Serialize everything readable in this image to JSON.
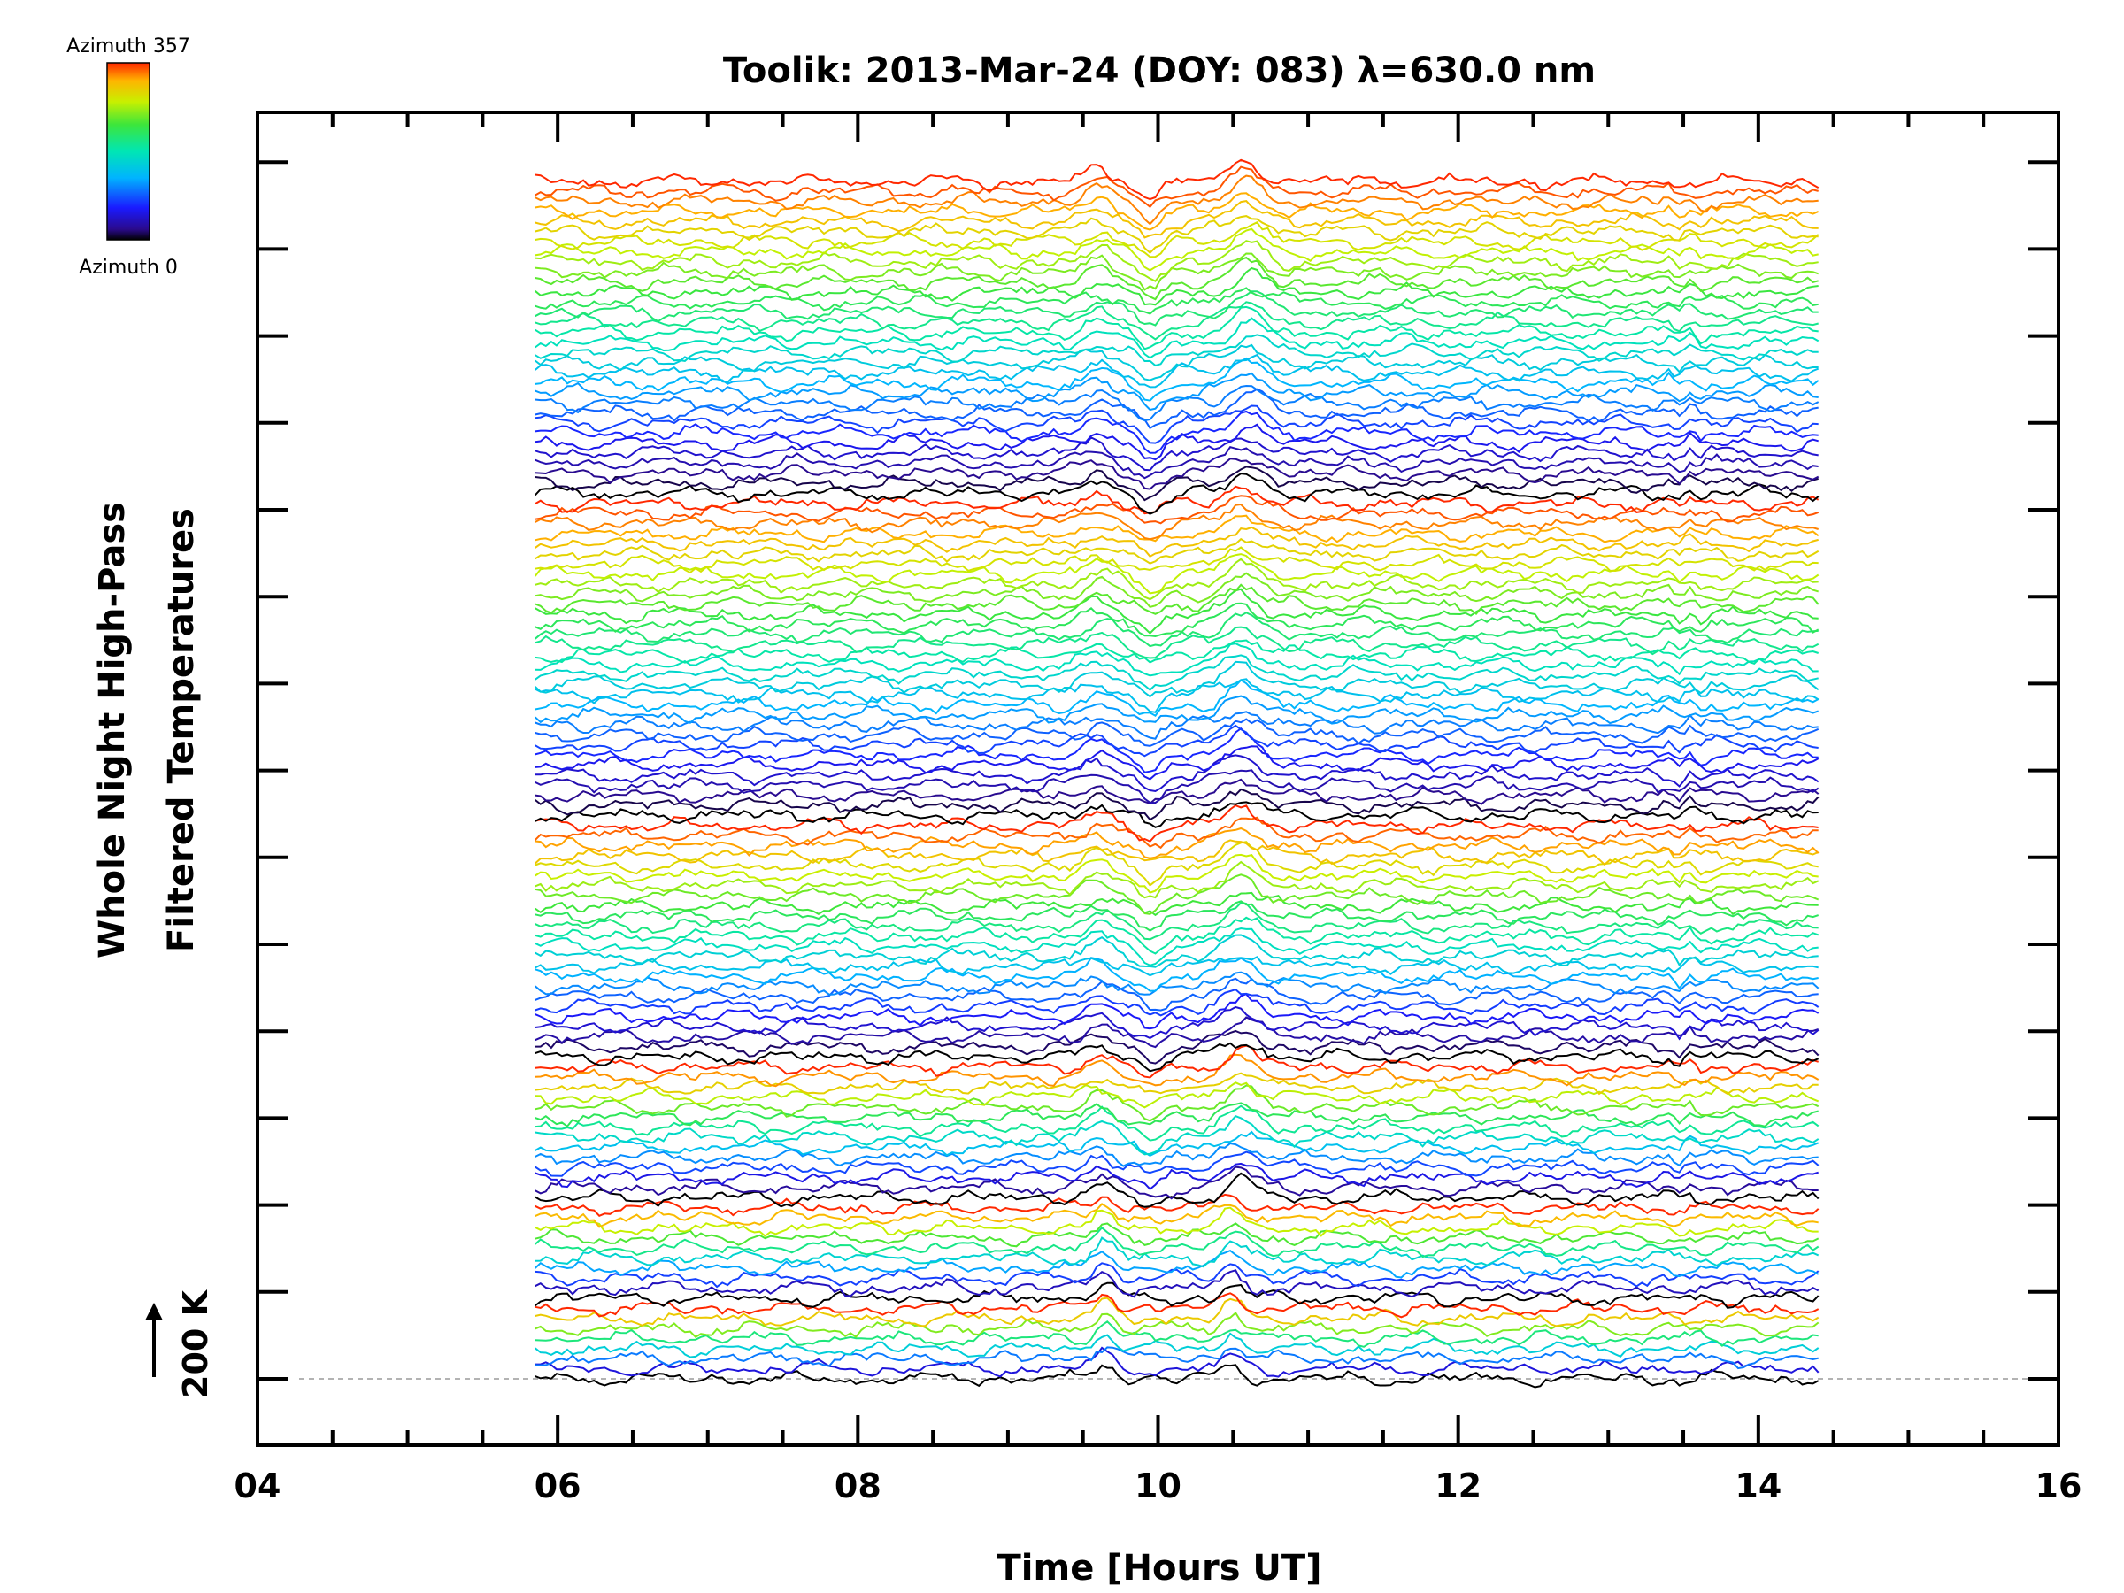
{
  "chart_data": {
    "type": "line",
    "title": "Toolik: 2013-Mar-24 (DOY: 083) λ=630.0 nm",
    "xlabel": "Time [Hours UT]",
    "ylabel_line1": "Whole Night High-Pass",
    "ylabel_line2": "Filtered Temperatures",
    "xlim": [
      4,
      16
    ],
    "xticks": [
      "04",
      "06",
      "08",
      "10",
      "12",
      "14",
      "16"
    ],
    "data_x_range": [
      5.85,
      14.4
    ],
    "scale_label": "200 K",
    "colorbar": {
      "top_label": "Azimuth 357",
      "bottom_label": "Azimuth 0",
      "min": 0,
      "max": 357
    },
    "stack": {
      "description_units": "stacked traces, each offset upward",
      "groups": [
        {
          "count": 8,
          "events": [
            [
              9.65,
              1.0,
              0.09
            ],
            [
              10.5,
              0.9,
              0.09
            ]
          ]
        },
        {
          "count": 10,
          "events": [
            [
              9.65,
              0.9,
              0.09
            ],
            [
              10.5,
              0.9,
              0.1
            ]
          ]
        },
        {
          "count": 14,
          "events": [
            [
              9.6,
              0.7,
              0.12
            ],
            [
              9.95,
              -0.6,
              0.1
            ],
            [
              10.55,
              1.0,
              0.14
            ]
          ]
        },
        {
          "count": 24,
          "events": [
            [
              9.6,
              0.7,
              0.12
            ],
            [
              9.95,
              -0.7,
              0.1
            ],
            [
              10.55,
              1.0,
              0.15
            ]
          ]
        },
        {
          "count": 32,
          "events": [
            [
              9.6,
              0.7,
              0.12
            ],
            [
              9.95,
              -0.8,
              0.1
            ],
            [
              10.55,
              1.1,
              0.15
            ]
          ]
        },
        {
          "count": 32,
          "events": [
            [
              9.6,
              0.7,
              0.12
            ],
            [
              9.95,
              -0.9,
              0.1
            ],
            [
              10.6,
              1.1,
              0.15
            ]
          ]
        }
      ]
    }
  }
}
